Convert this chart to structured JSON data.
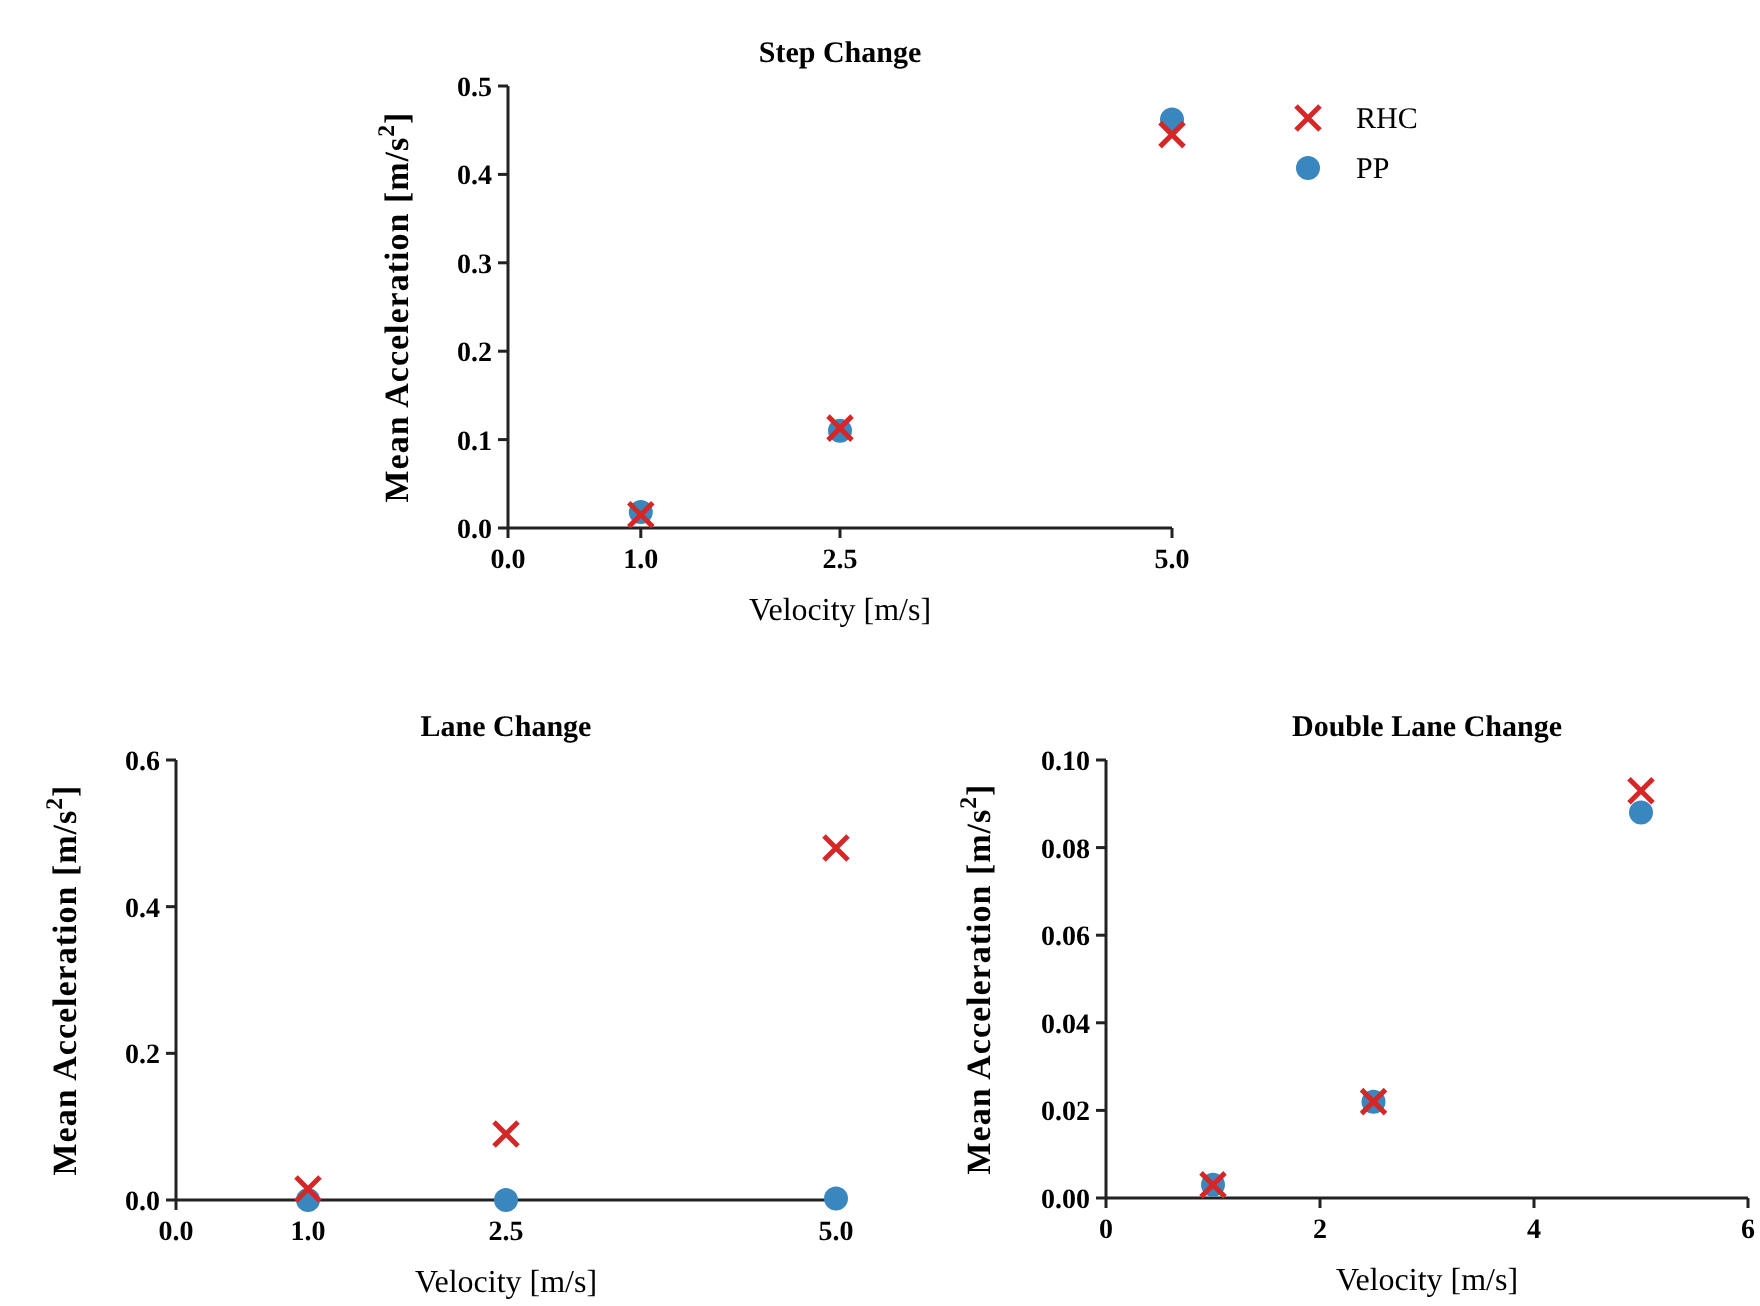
{
  "chart_data": [
    {
      "type": "scatter",
      "title": "Step  Change",
      "xlabel": "Velocity [m/s]",
      "ylabel": "Mean Acceleration [m/s$^{2}$]",
      "x": [
        1.0,
        2.5,
        5.0
      ],
      "xlim": [
        0,
        5
      ],
      "xticks": [
        {
          "value": 0,
          "label": "0.0"
        },
        {
          "value": 1,
          "label": "1.0"
        },
        {
          "value": 2.5,
          "label": "2.5"
        },
        {
          "value": 5,
          "label": "5.0"
        }
      ],
      "ylim": [
        0,
        0.5
      ],
      "yticks": [
        {
          "value": 0,
          "label": "0.0"
        },
        0.1,
        0.2,
        0.3,
        0.4,
        0.5
      ],
      "legend": "right",
      "grid": false,
      "series": [
        {
          "name": "RHC",
          "color": "#d62728",
          "marker": "cross",
          "values": [
            0.015,
            0.113,
            0.445
          ]
        },
        {
          "name": "PP",
          "color": "#3a87c0",
          "marker": "circle",
          "values": [
            0.018,
            0.11,
            0.462
          ]
        }
      ]
    },
    {
      "type": "scatter",
      "title": "Lane Change",
      "xlabel": "Velocity [m/s]",
      "ylabel": "Mean Acceleration [m/s$^{2}$]",
      "x": [
        1.0,
        2.5,
        5.0
      ],
      "xlim": [
        0,
        5
      ],
      "xticks": [
        {
          "value": 0,
          "label": "0.0"
        },
        {
          "value": 1,
          "label": "1.0"
        },
        {
          "value": 2.5,
          "label": "2.5"
        },
        {
          "value": 5,
          "label": "5.0"
        }
      ],
      "ylim": [
        0,
        0.6
      ],
      "yticks": [
        {
          "value": 0,
          "label": "0.0"
        },
        0.2,
        0.4,
        0.6
      ],
      "legend": false,
      "grid": false,
      "series": [
        {
          "color": "#d62728",
          "marker": "cross",
          "values": [
            0.015,
            0.09,
            0.48
          ]
        },
        {
          "color": "#3a87c0",
          "marker": "circle",
          "values": [
            0.0,
            0.0,
            0.002
          ]
        }
      ]
    },
    {
      "type": "scatter",
      "title": "Double Lane Change",
      "xlabel": "Velocity [m/s]",
      "ylabel": "Mean Acceleration [m/s$^{2}$]",
      "x": [
        1.0,
        2.5,
        5.0
      ],
      "xlim": [
        0,
        6
      ],
      "xticks": [
        0,
        2,
        4,
        6
      ],
      "ylim": [
        0,
        0.1
      ],
      "yticks": [
        {
          "value": 0,
          "label": "0.00"
        },
        {
          "value": 0.02,
          "label": "0.02"
        },
        {
          "value": 0.04,
          "label": "0.04"
        },
        {
          "value": 0.06,
          "label": "0.06"
        },
        {
          "value": 0.08,
          "label": "0.08"
        },
        {
          "value": 0.1,
          "label": "0.10"
        }
      ],
      "legend": false,
      "grid": false,
      "series": [
        {
          "color": "#d62728",
          "marker": "cross",
          "values": [
            0.003,
            0.022,
            0.093
          ]
        },
        {
          "color": "#3a87c0",
          "marker": "circle",
          "values": [
            0.003,
            0.022,
            0.088
          ]
        }
      ]
    }
  ]
}
